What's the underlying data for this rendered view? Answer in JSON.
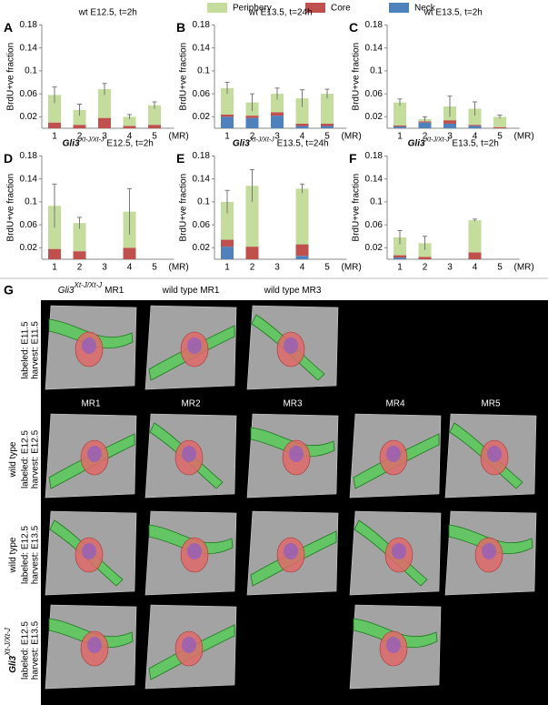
{
  "chart_data": [
    {
      "type": "bar",
      "stacked": true,
      "label": "A",
      "title": "wt E12.5, t=2h",
      "ylabel": "BrdU+ve fraction",
      "xlabel": "(MR)",
      "categories": [
        "1",
        "2",
        "3",
        "4",
        "5"
      ],
      "series": [
        {
          "name": "Periphery",
          "color": "#c4dc9c",
          "values": [
            0.048,
            0.026,
            0.05,
            0.016,
            0.034
          ]
        },
        {
          "name": "Core",
          "color": "#c0504d",
          "values": [
            0.01,
            0.006,
            0.018,
            0.004,
            0.006
          ]
        },
        {
          "name": "Neck",
          "color": "#4f81bd",
          "values": [
            0,
            0,
            0,
            0,
            0
          ]
        }
      ],
      "errors": [
        0.014,
        0.01,
        0.01,
        0.004,
        0.006
      ],
      "ylim": [
        0,
        0.18
      ],
      "yticks": [
        0.02,
        0.06,
        0.1,
        0.14,
        0.18
      ]
    },
    {
      "type": "bar",
      "stacked": true,
      "label": "B",
      "title": "wt E13.5, t=24h",
      "ylabel": "BrdU+ve fraction",
      "xlabel": "(MR)",
      "categories": [
        "1",
        "2",
        "3",
        "4",
        "5"
      ],
      "series": [
        {
          "name": "Periphery",
          "color": "#c4dc9c",
          "values": [
            0.046,
            0.023,
            0.032,
            0.044,
            0.052
          ]
        },
        {
          "name": "Core",
          "color": "#c0504d",
          "values": [
            0.004,
            0.004,
            0.006,
            0.004,
            0.004
          ]
        },
        {
          "name": "Neck",
          "color": "#4f81bd",
          "values": [
            0.02,
            0.018,
            0.022,
            0.004,
            0.004
          ]
        }
      ],
      "errors": [
        0.01,
        0.015,
        0.01,
        0.015,
        0.008
      ],
      "ylim": [
        0,
        0.18
      ],
      "yticks": [
        0.02,
        0.06,
        0.1,
        0.14,
        0.18
      ]
    },
    {
      "type": "bar",
      "stacked": true,
      "label": "C",
      "title": "wt E13.5, t=2h",
      "ylabel": "BrdU+ve fraction",
      "xlabel": "(MR)",
      "categories": [
        "1",
        "2",
        "3",
        "4",
        "5"
      ],
      "series": [
        {
          "name": "Periphery",
          "color": "#c4dc9c",
          "values": [
            0.04,
            0.004,
            0.024,
            0.028,
            0.018
          ]
        },
        {
          "name": "Core",
          "color": "#c0504d",
          "values": [
            0.002,
            0.002,
            0.006,
            0.002,
            0.002
          ]
        },
        {
          "name": "Neck",
          "color": "#4f81bd",
          "values": [
            0.003,
            0.01,
            0.008,
            0.004,
            0
          ]
        }
      ],
      "errors": [
        0.006,
        0.004,
        0.018,
        0.012,
        0.003
      ],
      "ylim": [
        0,
        0.18
      ],
      "yticks": [
        0.02,
        0.06,
        0.1,
        0.14,
        0.18
      ]
    },
    {
      "type": "bar",
      "stacked": true,
      "label": "D",
      "title_gene": "Gli3",
      "title_sup": "Xt-J/Xt-J",
      "title": "E12.5, t=2h",
      "ylabel": "BrdU+ve fraction",
      "xlabel": "(MR)",
      "categories": [
        "1",
        "2",
        "3",
        "4",
        "5"
      ],
      "series": [
        {
          "name": "Periphery",
          "color": "#c4dc9c",
          "values": [
            0.075,
            0.049,
            null,
            0.063,
            null
          ]
        },
        {
          "name": "Core",
          "color": "#c0504d",
          "values": [
            0.018,
            0.014,
            null,
            0.02,
            null
          ]
        },
        {
          "name": "Neck",
          "color": "#4f81bd",
          "values": [
            0,
            0,
            null,
            0,
            null
          ]
        }
      ],
      "errors": [
        0.038,
        0.01,
        null,
        0.04,
        null
      ],
      "ylim": [
        0,
        0.18
      ],
      "yticks": [
        0.02,
        0.06,
        0.1,
        0.14,
        0.18
      ]
    },
    {
      "type": "bar",
      "stacked": true,
      "label": "E",
      "title_gene": "Gli3",
      "title_sup": "Xt-J/Xt-J",
      "title": "E13.5, t=24h",
      "ylabel": "BrdU+ve fraction",
      "xlabel": "(MR)",
      "categories": [
        "1",
        "2",
        "3",
        "4",
        "5"
      ],
      "series": [
        {
          "name": "Periphery",
          "color": "#c4dc9c",
          "values": [
            0.066,
            0.106,
            null,
            0.097,
            null
          ]
        },
        {
          "name": "Core",
          "color": "#c0504d",
          "values": [
            0.012,
            0.022,
            null,
            0.02,
            null
          ]
        },
        {
          "name": "Neck",
          "color": "#4f81bd",
          "values": [
            0.022,
            0,
            null,
            0.006,
            null
          ]
        }
      ],
      "errors": [
        0.02,
        0.028,
        null,
        0.008,
        null
      ],
      "ylim": [
        0,
        0.18
      ],
      "yticks": [
        0.02,
        0.06,
        0.1,
        0.14,
        0.18
      ]
    },
    {
      "type": "bar",
      "stacked": true,
      "label": "F",
      "title_gene": "Gli3",
      "title_sup": "Xt-J/Xt-J",
      "title": "E13.5, t=2h",
      "ylabel": "BrdU+ve fraction",
      "xlabel": "(MR)",
      "categories": [
        "1",
        "2",
        "3",
        "4",
        "5"
      ],
      "series": [
        {
          "name": "Periphery",
          "color": "#c4dc9c",
          "values": [
            0.031,
            0.024,
            null,
            0.056,
            null
          ]
        },
        {
          "name": "Core",
          "color": "#c0504d",
          "values": [
            0.004,
            0.004,
            null,
            0.012,
            null
          ]
        },
        {
          "name": "Neck",
          "color": "#4f81bd",
          "values": [
            0.003,
            0,
            null,
            0,
            null
          ]
        }
      ],
      "errors": [
        0.012,
        0.012,
        null,
        0.002,
        null
      ],
      "ylim": [
        0,
        0.18
      ],
      "yticks": [
        0.02,
        0.06,
        0.1,
        0.14,
        0.18
      ]
    }
  ],
  "panel_g": {
    "label": "G",
    "top_headers": [
      {
        "gene": "Gli3",
        "sup": "Xt-J/Xt-J",
        "text": "MR1"
      },
      {
        "text": "wild type MR1"
      },
      {
        "text": "wild type MR3"
      }
    ],
    "mr_headers": [
      "MR1",
      "MR2",
      "MR3",
      "MR4",
      "MR5"
    ],
    "rows": [
      {
        "lines": [
          "labeled: E11.5",
          "harvest: E11.5"
        ]
      },
      {
        "genotype": "wild type",
        "lines": [
          "labeled: E12.5",
          "harvest: E12.5"
        ]
      },
      {
        "genotype": "wild type",
        "lines": [
          "labeled: E12.5",
          "harvest: E13.5"
        ]
      },
      {
        "genotype_gene": "Gli3",
        "genotype_sup": "Xt-J/Xt-J",
        "lines": [
          "labeled: E12.5",
          "harvest: E13.5"
        ]
      }
    ]
  }
}
